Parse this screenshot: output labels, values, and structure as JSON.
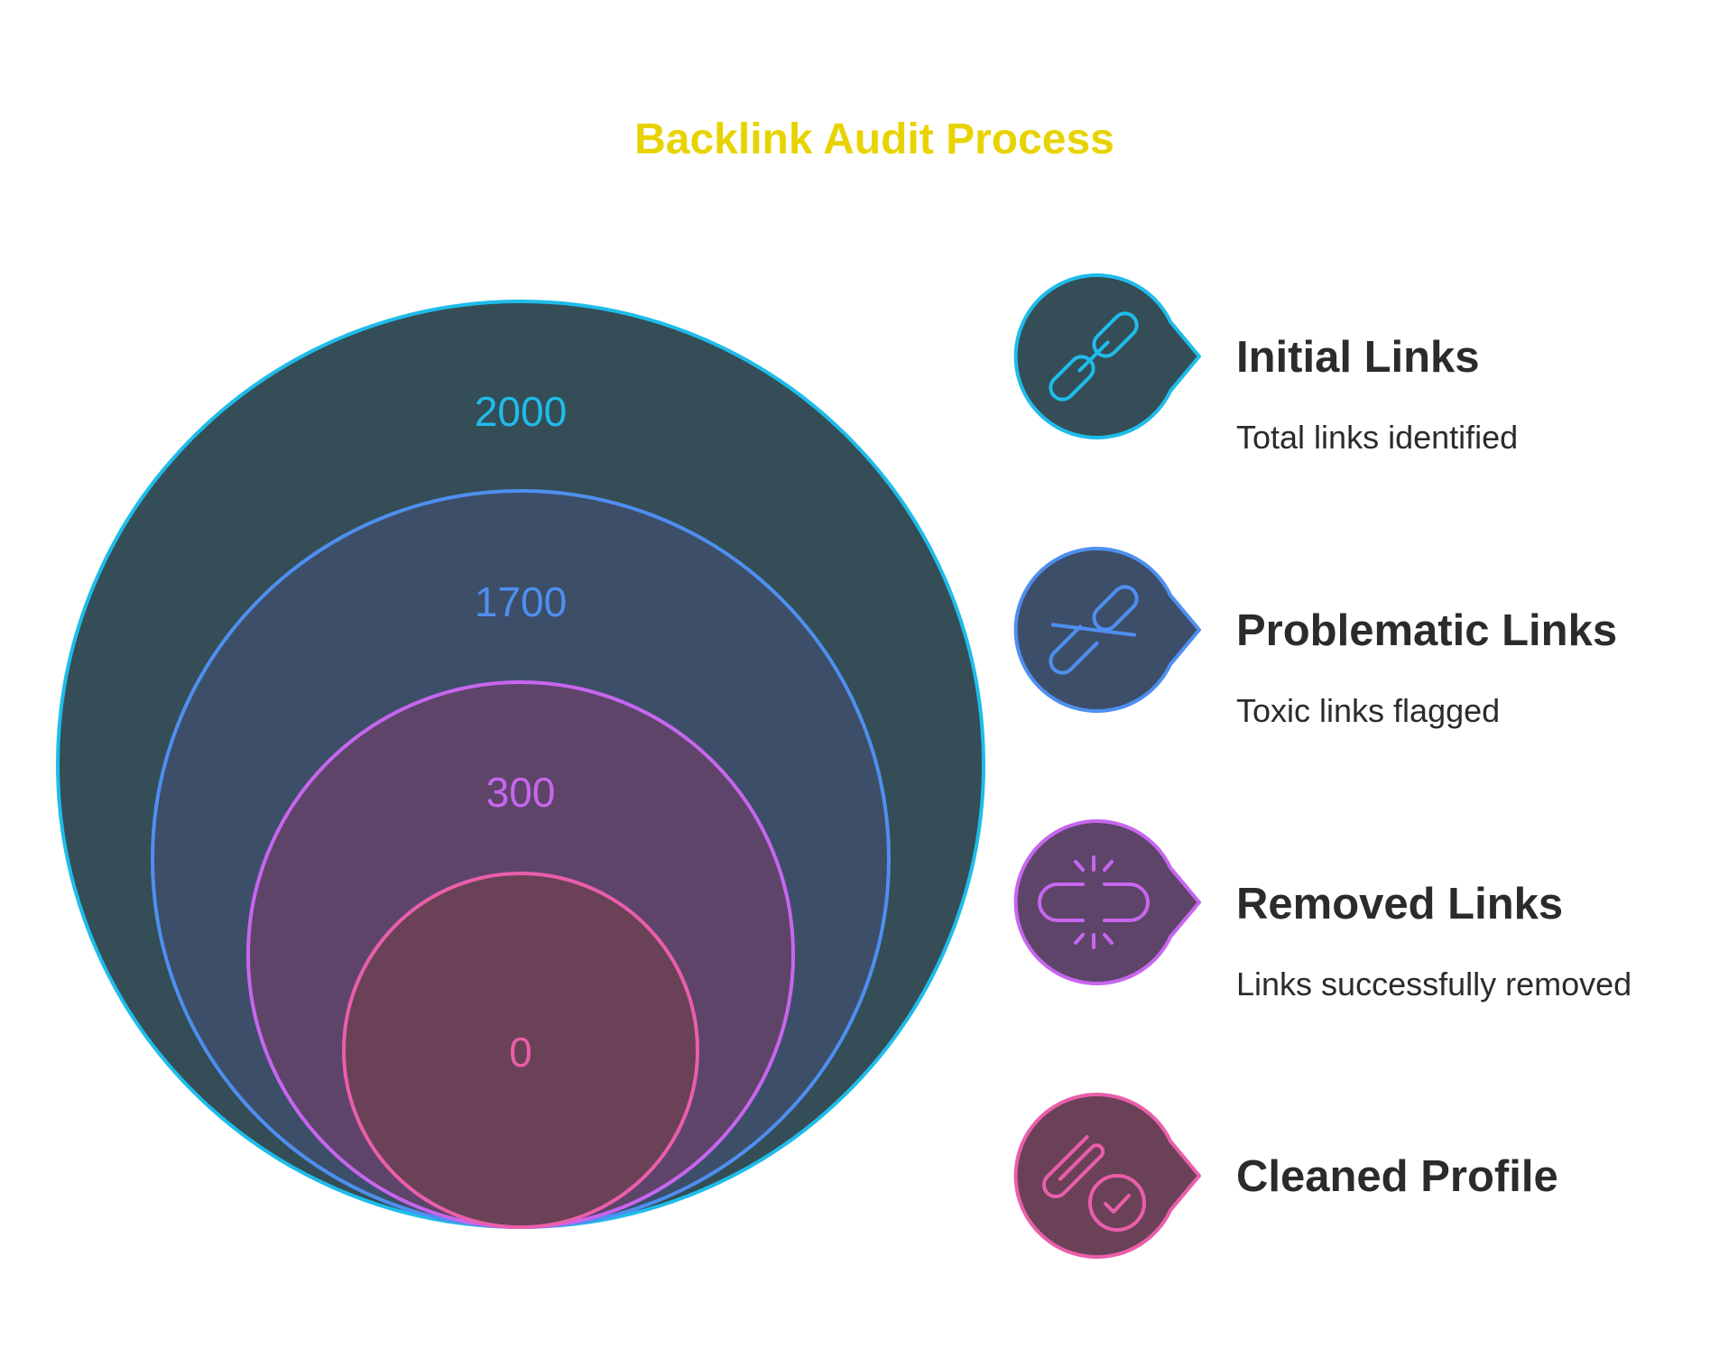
{
  "title": "Backlink Audit Process",
  "colors": {
    "title": "#e8d300",
    "text": "#2b2b2b",
    "background": "#ffffff"
  },
  "stages": [
    {
      "value": "2000",
      "label": "Initial Links",
      "description": "Total links identified",
      "icon": "chain-link-icon",
      "stroke": "#1ebcea",
      "fill": "#344d56"
    },
    {
      "value": "1700",
      "label": "Problematic Links",
      "description": "Toxic links flagged",
      "icon": "slashed-link-icon",
      "stroke": "#4e8ff0",
      "fill": "#3d4e69"
    },
    {
      "value": "300",
      "label": "Removed Links",
      "description": "Links successfully removed",
      "icon": "broken-link-icon",
      "stroke": "#c766ee",
      "fill": "#5e4469"
    },
    {
      "value": "0",
      "label": "Cleaned Profile",
      "description": "",
      "icon": "paperclip-check-icon",
      "stroke": "#ea5eab",
      "fill": "#6a4156"
    }
  ]
}
